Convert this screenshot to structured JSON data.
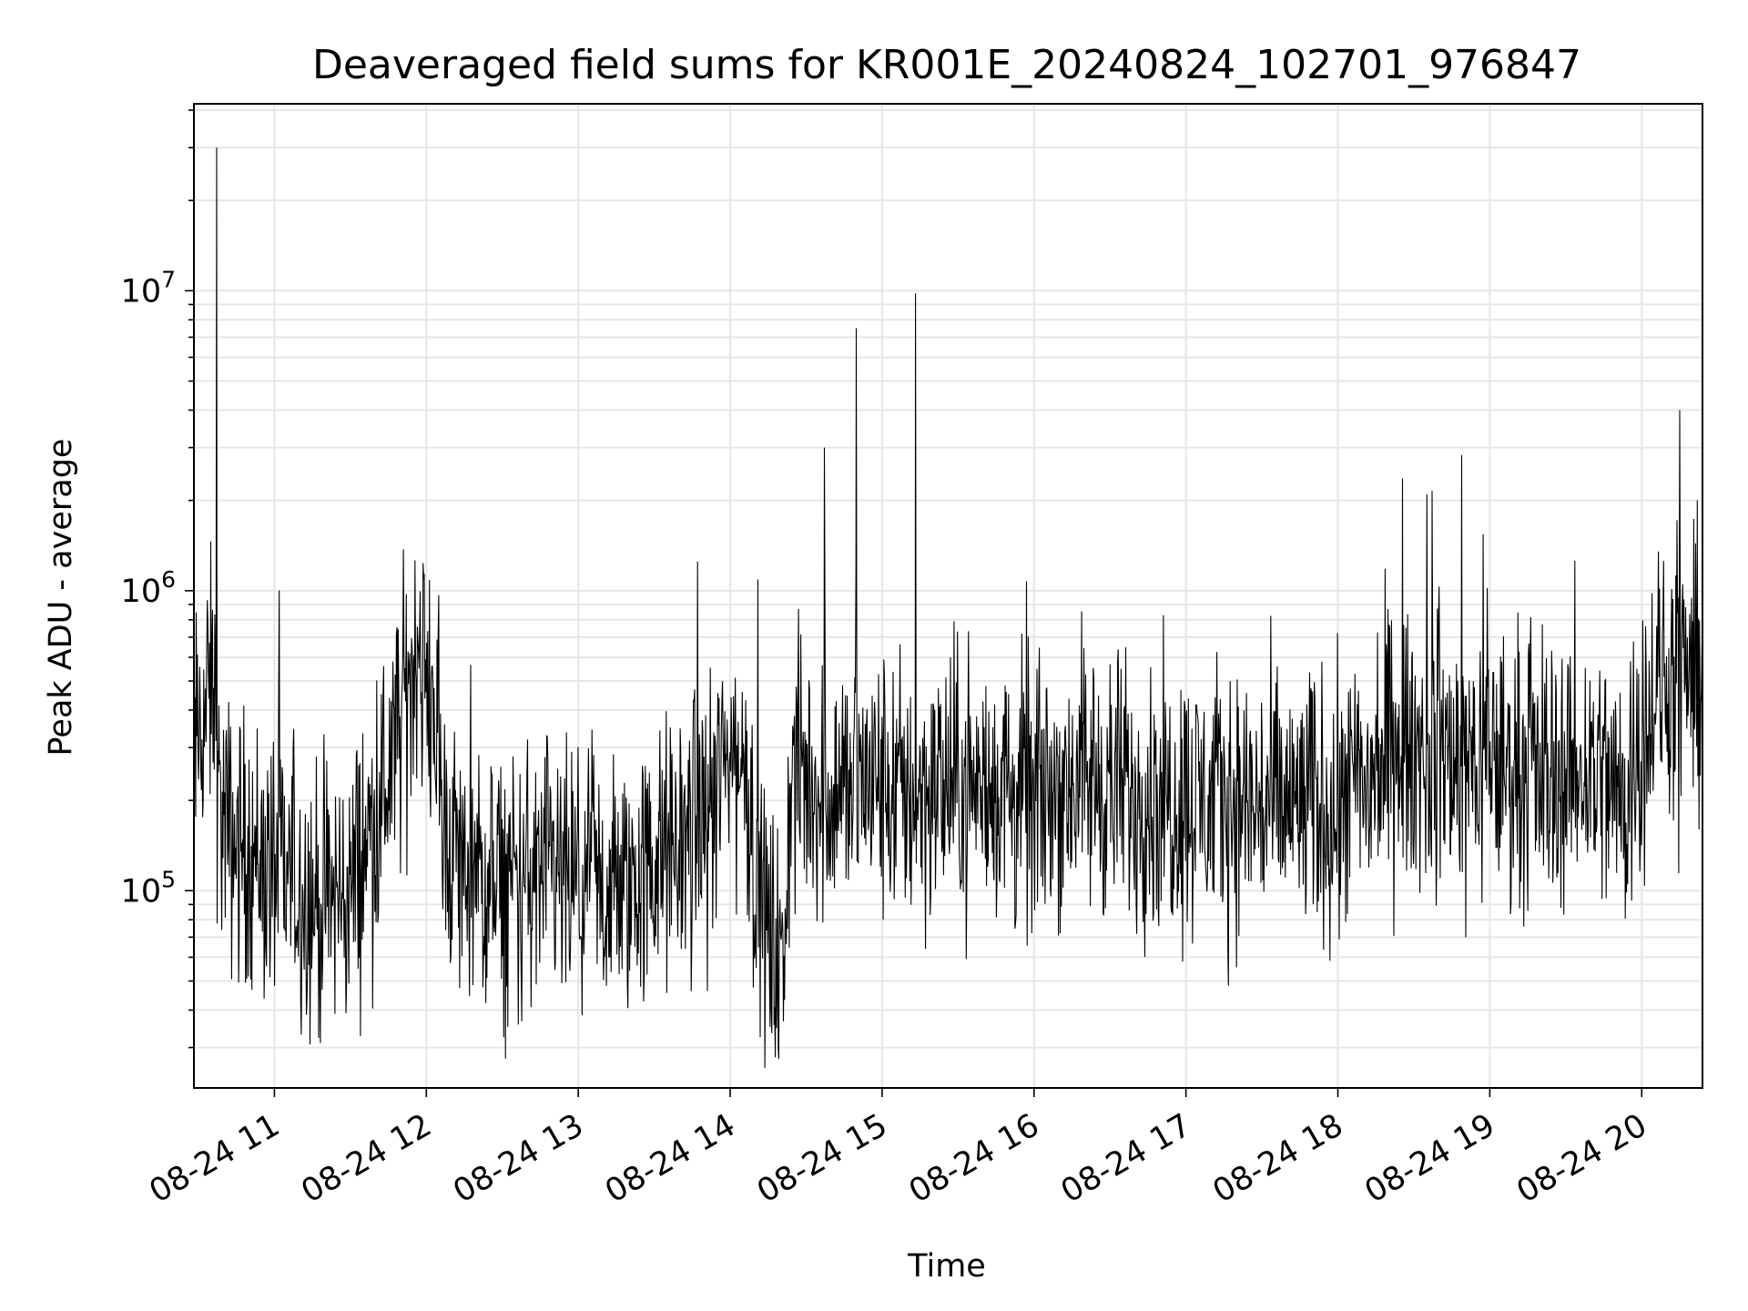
{
  "chart_data": {
    "type": "line",
    "title": "Deaveraged field sums for KR001E_20240824_102701_976847",
    "xlabel": "Time",
    "ylabel": "Peak ADU - average",
    "yscale": "log",
    "ylim": [
      22000,
      42000000
    ],
    "xlim_hours": [
      10.47,
      20.4
    ],
    "x_ticks": [
      {
        "hour": 11,
        "label": "08-24 11"
      },
      {
        "hour": 12,
        "label": "08-24 12"
      },
      {
        "hour": 13,
        "label": "08-24 13"
      },
      {
        "hour": 14,
        "label": "08-24 14"
      },
      {
        "hour": 15,
        "label": "08-24 15"
      },
      {
        "hour": 16,
        "label": "08-24 16"
      },
      {
        "hour": 17,
        "label": "08-24 17"
      },
      {
        "hour": 18,
        "label": "08-24 18"
      },
      {
        "hour": 19,
        "label": "08-24 19"
      },
      {
        "hour": 20,
        "label": "08-24 20"
      }
    ],
    "y_ticks": [
      {
        "value": 100000,
        "base": "10",
        "exp": "5"
      },
      {
        "value": 1000000,
        "base": "10",
        "exp": "6"
      },
      {
        "value": 10000000,
        "base": "10",
        "exp": "7"
      }
    ],
    "grid": true,
    "line_color": "#000000",
    "series": [
      {
        "x": [
          10.47,
          10.55,
          10.6,
          10.62,
          10.63,
          10.65,
          10.7,
          10.8,
          10.9,
          11.0,
          11.1,
          11.2,
          11.3,
          11.5,
          11.7,
          11.8,
          11.9,
          11.95,
          12.0,
          12.05,
          12.1,
          12.2,
          12.3,
          12.5,
          12.7,
          13.0,
          13.3,
          13.5,
          13.7,
          13.9,
          14.0,
          14.1,
          14.2,
          14.3,
          14.35,
          14.4,
          14.5,
          14.6,
          14.62,
          14.7,
          14.8,
          14.83,
          14.9,
          15.0,
          15.1,
          15.22,
          15.3,
          15.5,
          15.7,
          16.0,
          16.2,
          16.3,
          16.5,
          16.7,
          17.0,
          17.3,
          17.5,
          17.7,
          18.0,
          18.2,
          18.4,
          18.6,
          18.8,
          19.0,
          19.2,
          19.4,
          19.6,
          19.7,
          19.8,
          19.9,
          20.0,
          20.1,
          20.2,
          20.25,
          20.3,
          20.4
        ],
        "y": [
          280000,
          400000,
          500000,
          30000000,
          200000,
          180000,
          150000,
          140000,
          130000,
          120000,
          110000,
          100000,
          90000,
          100000,
          200000,
          300000,
          500000,
          800000,
          400000,
          500000,
          180000,
          130000,
          110000,
          100000,
          110000,
          100000,
          100000,
          120000,
          150000,
          200000,
          300000,
          250000,
          90000,
          60000,
          50000,
          250000,
          230000,
          220000,
          3000000,
          220000,
          230000,
          7500000,
          230000,
          220000,
          210000,
          9800000,
          215000,
          230000,
          220000,
          200000,
          230000,
          240000,
          220000,
          210000,
          200000,
          200000,
          190000,
          190000,
          200000,
          230000,
          300000,
          290000,
          280000,
          270000,
          260000,
          250000,
          250000,
          260000,
          220000,
          200000,
          350000,
          450000,
          500000,
          4000000,
          480000,
          600000
        ]
      }
    ]
  }
}
